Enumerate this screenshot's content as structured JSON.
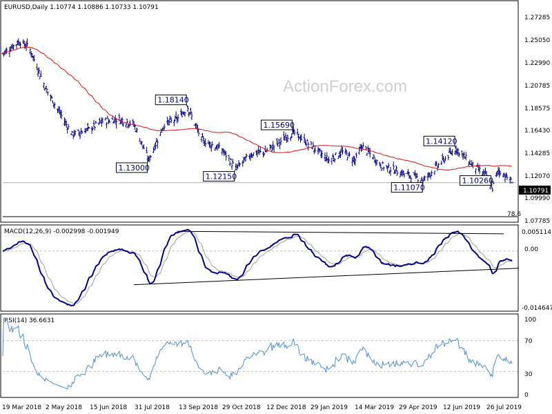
{
  "header": {
    "symbol_line": "EURUSD,Daily  1.10774 1.10886 1.10733 1.10791",
    "watermark": "ActionForex.com"
  },
  "colors": {
    "bar": "#00008b",
    "ma": "#e01010",
    "macd_line": "#00008b",
    "signal_line": "#a0a0a0",
    "rsi_line": "#4a90d9",
    "trendline": "#000000",
    "grid_dash": "#c0c0c0"
  },
  "chart_data": [
    {
      "type": "ohlc",
      "name": "price",
      "title": "EURUSD,Daily",
      "ohlc_readout": [
        "1.10774",
        "1.10886",
        "1.10733",
        "1.10791"
      ],
      "y_ticks": [
        "1.27285",
        "1.25050",
        "1.22990",
        "1.20785",
        "1.18575",
        "1.16430",
        "1.14285",
        "1.12070",
        "1.09990",
        "1.07785"
      ],
      "ylim": [
        1.072,
        1.283
      ],
      "x_ticks": [
        "19 Mar 2018",
        "2 May 2018",
        "15 Jun 2018",
        "31 Jul 2018",
        "13 Sep 2018",
        "29 Oct 2018",
        "12 Dec 2018",
        "29 Jan 2019",
        "14 Mar 2019",
        "29 Apr 2019",
        "12 Jun 2019",
        "26 Jul 2019"
      ],
      "last_price": "1.10791",
      "fib_label": "78.6",
      "approx_close_path": [
        {
          "date": "19 Mar 2018",
          "close": 1.234
        },
        {
          "date": "5 Apr 2018",
          "close": 1.246
        },
        {
          "date": "15 Apr 2018",
          "close": 1.24
        },
        {
          "date": "2 May 2018",
          "close": 1.2
        },
        {
          "date": "15 May 2018",
          "close": 1.178
        },
        {
          "date": "29 May 2018",
          "close": 1.155
        },
        {
          "date": "15 Jun 2018",
          "close": 1.16
        },
        {
          "date": "30 Jun 2018",
          "close": 1.168
        },
        {
          "date": "15 Jul 2018",
          "close": 1.17
        },
        {
          "date": "31 Jul 2018",
          "close": 1.165
        },
        {
          "date": "15 Aug 2018",
          "close": 1.13
        },
        {
          "date": "31 Aug 2018",
          "close": 1.165
        },
        {
          "date": "13 Sep 2018",
          "close": 1.17
        },
        {
          "date": "24 Sep 2018",
          "close": 1.1814
        },
        {
          "date": "8 Oct 2018",
          "close": 1.15
        },
        {
          "date": "29 Oct 2018",
          "close": 1.14
        },
        {
          "date": "12 Nov 2018",
          "close": 1.1215
        },
        {
          "date": "28 Nov 2018",
          "close": 1.136
        },
        {
          "date": "12 Dec 2018",
          "close": 1.138
        },
        {
          "date": "10 Jan 2019",
          "close": 1.1569
        },
        {
          "date": "29 Jan 2019",
          "close": 1.143
        },
        {
          "date": "15 Feb 2019",
          "close": 1.13
        },
        {
          "date": "1 Mar 2019",
          "close": 1.138
        },
        {
          "date": "14 Mar 2019",
          "close": 1.13
        },
        {
          "date": "21 Mar 2019",
          "close": 1.144
        },
        {
          "date": "9 Apr 2019",
          "close": 1.125
        },
        {
          "date": "29 Apr 2019",
          "close": 1.118
        },
        {
          "date": "23 May 2019",
          "close": 1.1107
        },
        {
          "date": "12 Jun 2019",
          "close": 1.13
        },
        {
          "date": "25 Jun 2019",
          "close": 1.1412
        },
        {
          "date": "12 Jul 2019",
          "close": 1.125
        },
        {
          "date": "26 Jul 2019",
          "close": 1.115
        },
        {
          "date": "1 Aug 2019",
          "close": 1.1026
        },
        {
          "date": "7 Aug 2019",
          "close": 1.12
        },
        {
          "date": "14 Aug 2019",
          "close": 1.115
        },
        {
          "date": "21 Aug 2019",
          "close": 1.1079
        }
      ],
      "annotations": [
        {
          "label": "1.18140",
          "date": "24 Sep 2018",
          "price": 1.1814
        },
        {
          "label": "1.13000",
          "date": "15 Aug 2018",
          "price": 1.13
        },
        {
          "label": "1.15690",
          "date": "10 Jan 2019",
          "price": 1.1569
        },
        {
          "label": "1.12150",
          "date": "12 Nov 2018",
          "price": 1.1215
        },
        {
          "label": "1.14120",
          "date": "25 Jun 2019",
          "price": 1.1412
        },
        {
          "label": "1.11070",
          "date": "23 May 2019",
          "price": 1.1107
        },
        {
          "label": "1.10260",
          "date": "1 Aug 2019",
          "price": 1.1026
        }
      ]
    },
    {
      "type": "line",
      "name": "macd",
      "title": "MACD(12,26,9) -0.002998 -0.001949",
      "y_ticks": [
        "0.005114",
        "0.00",
        "-0.014647"
      ],
      "ylim": [
        -0.016,
        0.0065
      ]
    },
    {
      "type": "line",
      "name": "rsi",
      "title": "RSI(14) 36.6631",
      "y_ticks": [
        "100",
        "70",
        "30",
        "0"
      ],
      "ylim": [
        0,
        100
      ],
      "levels": [
        70,
        30
      ]
    }
  ]
}
